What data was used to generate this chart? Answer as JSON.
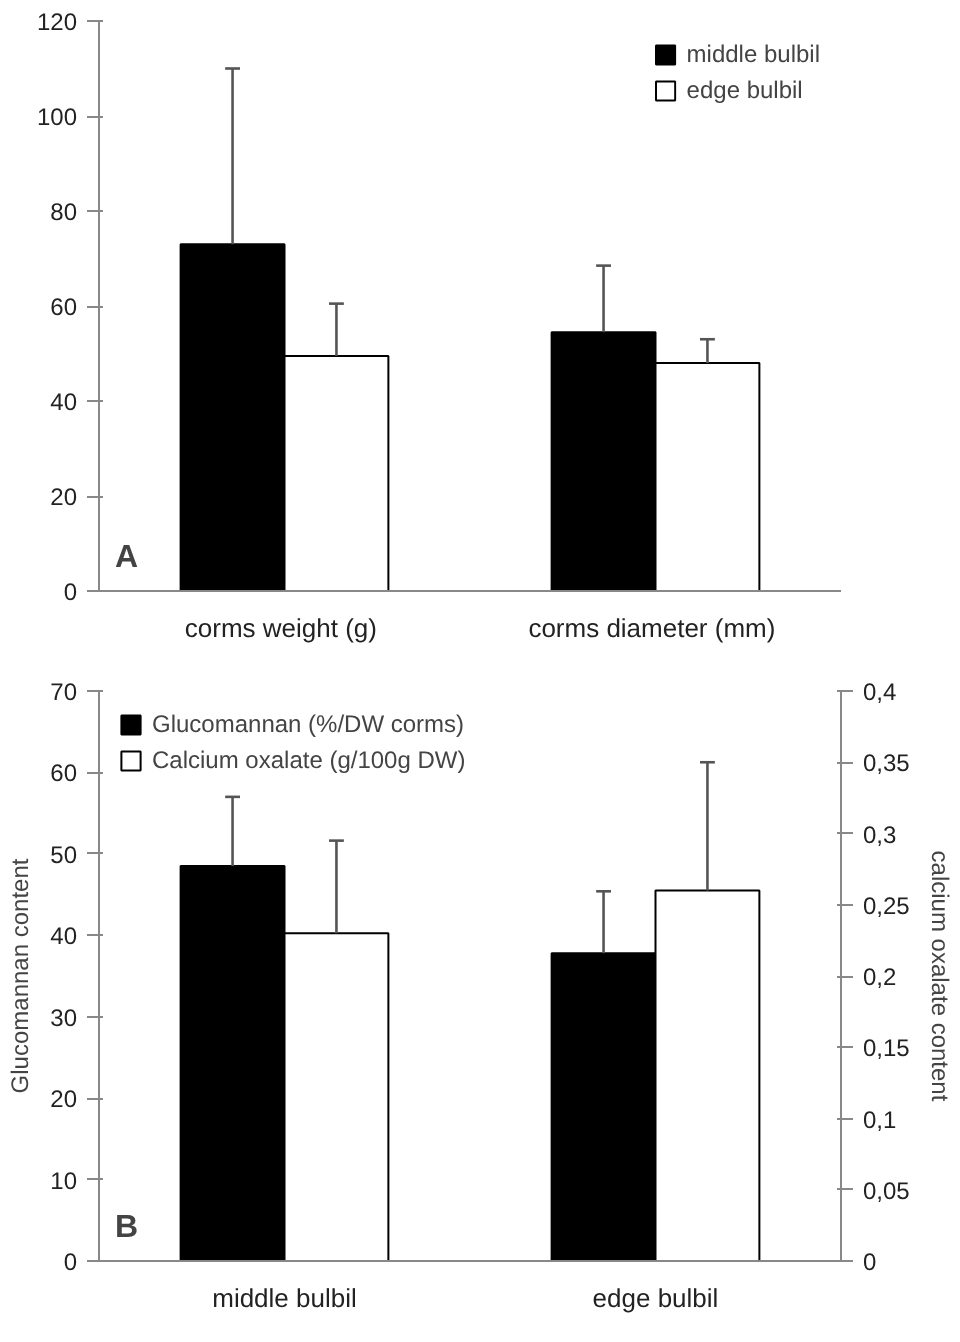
{
  "chart_data": [
    {
      "type": "bar",
      "categories": [
        "corms weight  (g)",
        "corms diameter  (mm)"
      ],
      "ylim": [
        0,
        120
      ],
      "yticks": [
        0,
        20,
        40,
        60,
        80,
        100,
        120
      ],
      "grid": false,
      "legend": "top right",
      "annotations": [
        "A"
      ],
      "series": [
        {
          "name": "middle bulbil",
          "color": "#000000",
          "values": [
            73,
            54.5
          ],
          "errors": [
            [
              73,
              110
            ],
            [
              54.5,
              68.5
            ]
          ]
        },
        {
          "name": "edge bulbil",
          "color": "#ffffff",
          "values": [
            49.5,
            48
          ],
          "errors": [
            [
              49.5,
              60.5
            ],
            [
              48,
              53
            ]
          ]
        }
      ]
    },
    {
      "type": "bar",
      "categories": [
        "middle bulbil",
        "edge bulbil"
      ],
      "ylabel": "Glucomannan content",
      "y2label": "calcium oxalate content",
      "ylim": [
        0,
        70
      ],
      "yticks": [
        0,
        10,
        20,
        30,
        40,
        50,
        60,
        70
      ],
      "y2lim": [
        0,
        0.4
      ],
      "y2ticks": [
        0,
        {
          "value": 0.05,
          "label": "0,05"
        },
        {
          "value": 0.1,
          "label": "0,1"
        },
        {
          "value": 0.15,
          "label": "0,15"
        },
        {
          "value": 0.2,
          "label": "0,2"
        },
        {
          "value": 0.25,
          "label": "0,25"
        },
        {
          "value": 0.3,
          "label": "0,3"
        },
        {
          "value": 0.35,
          "label": "0,35"
        },
        {
          "value": 0.4,
          "label": "0,4"
        }
      ],
      "grid": false,
      "legend": "top left",
      "annotations": [
        "B"
      ],
      "series": [
        {
          "name": "Glucomannan (%/DW corms)",
          "color": "#000000",
          "values": [
            48.5,
            37.8
          ],
          "errors": [
            [
              48.5,
              57
            ],
            [
              37.8,
              45.4
            ]
          ]
        },
        {
          "name": "Calcium oxalate (g/100g DW)",
          "color": "#ffffff",
          "axis": "y2",
          "values": [
            0.23,
            0.26
          ],
          "errors": [
            [
              0.23,
              0.295
            ],
            [
              0.26,
              0.35
            ]
          ]
        }
      ]
    }
  ]
}
